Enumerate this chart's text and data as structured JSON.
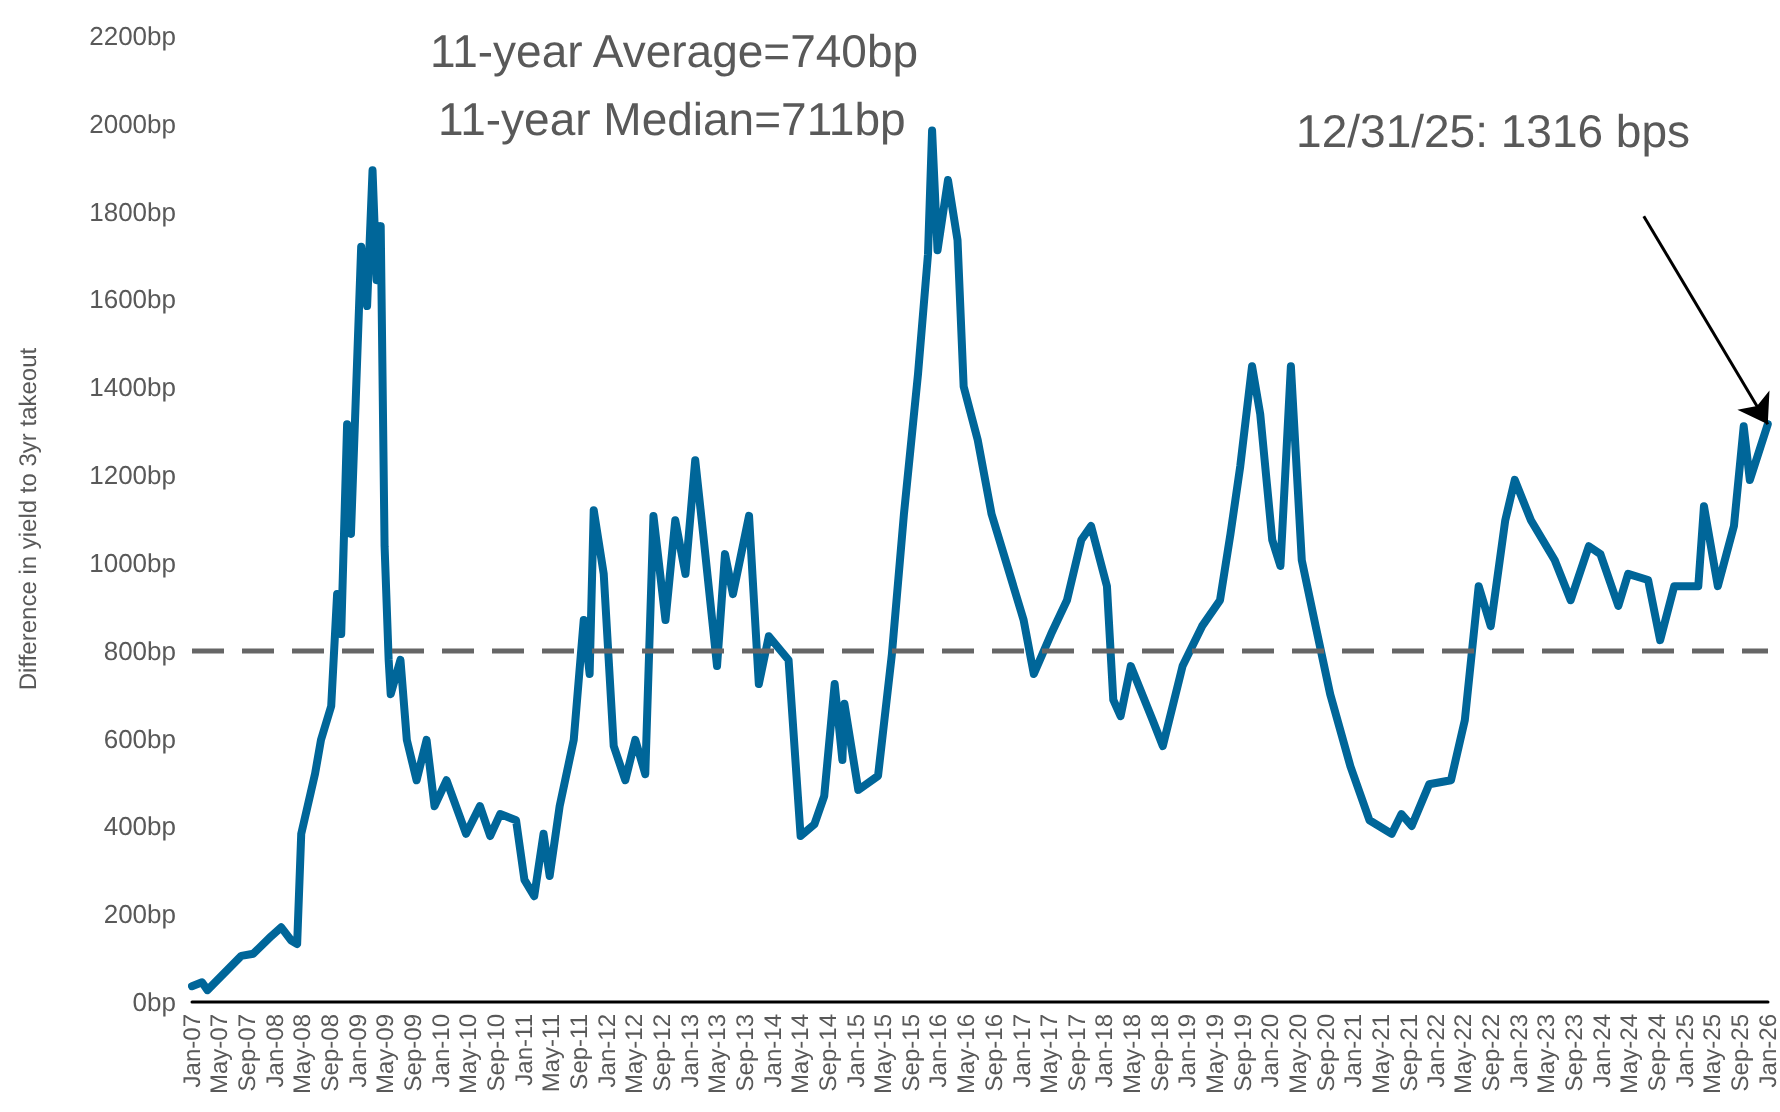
{
  "chart_data": {
    "type": "line",
    "ylabel": "Difference in yield to 3yr takeout",
    "annotations": [
      "11-year Average=740bp",
      "11-year Median=711bp",
      {
        "text": "12/31/25: 1316 bps",
        "x": "2025-12-31",
        "y": 1316
      }
    ],
    "x": [
      "2007-01-01",
      "2007-02-14",
      "2007-03-10",
      "2007-08-06",
      "2007-09-28",
      "2007-12-16",
      "2008-01-29",
      "2008-03-13",
      "2008-04-08",
      "2008-04-26",
      "2008-06-26",
      "2008-07-22",
      "2008-09-05",
      "2008-10-01",
      "2008-10-19",
      "2008-11-14",
      "2008-12-01",
      "2009-01-15",
      "2009-02-10",
      "2009-03-06",
      "2009-03-24",
      "2009-04-11",
      "2009-04-28",
      "2009-05-16",
      "2009-05-25",
      "2009-07-07",
      "2009-08-04",
      "2009-09-16",
      "2009-10-30",
      "2009-12-04",
      "2010-01-26",
      "2010-04-22",
      "2010-06-22",
      "2010-08-06",
      "2010-09-19",
      "2010-11-28",
      "2011-01-04",
      "2011-02-16",
      "2011-03-29",
      "2011-04-25",
      "2011-06-08",
      "2011-08-09",
      "2011-09-22",
      "2011-10-18",
      "2011-11-05",
      "2011-12-19",
      "2012-02-01",
      "2012-03-23",
      "2012-05-06",
      "2012-06-19",
      "2012-07-25",
      "2012-09-16",
      "2012-10-29",
      "2012-12-13",
      "2013-01-25",
      "2013-03-01",
      "2013-05-01",
      "2013-06-05",
      "2013-07-10",
      "2013-09-19",
      "2013-11-01",
      "2013-12-15",
      "2014-03-12",
      "2014-05-04",
      "2014-07-04",
      "2014-08-16",
      "2014-10-01",
      "2014-11-04",
      "2014-11-13",
      "2015-01-13",
      "2015-04-10",
      "2015-06-10",
      "2015-08-02",
      "2015-10-03",
      "2015-11-16",
      "2015-12-04",
      "2015-12-28",
      "2016-02-12",
      "2016-03-25",
      "2016-04-21",
      "2016-06-22",
      "2016-08-22",
      "2016-11-18",
      "2017-01-10",
      "2017-02-24",
      "2017-05-11",
      "2017-07-20",
      "2017-09-21",
      "2017-11-03",
      "2018-01-12",
      "2018-02-09",
      "2018-03-13",
      "2018-04-27",
      "2018-08-01",
      "2018-09-15",
      "2018-12-11",
      "2019-03-07",
      "2019-05-25",
      "2019-07-10",
      "2019-08-22",
      "2019-10-13",
      "2019-11-18",
      "2020-01-10",
      "2020-02-15",
      "2020-04-01",
      "2020-05-19",
      "2020-07-19",
      "2020-09-21",
      "2020-12-19",
      "2021-03-13",
      "2021-06-19",
      "2021-08-01",
      "2021-09-15",
      "2021-12-01",
      "2022-03-07",
      "2022-05-07",
      "2022-07-07",
      "2022-08-29",
      "2022-11-01",
      "2022-12-13",
      "2023-02-22",
      "2023-06-07",
      "2023-08-16",
      "2023-11-04",
      "2023-12-25",
      "2024-03-13",
      "2024-04-25",
      "2024-07-22",
      "2024-09-13",
      "2024-11-14",
      "2025-02-28",
      "2025-03-25",
      "2025-05-25",
      "2025-08-04",
      "2025-09-16",
      "2025-10-13",
      "2025-12-31"
    ],
    "series": [
      {
        "color": "#006699",
        "values": [
          36,
          45,
          27,
          105,
          110,
          150,
          170,
          140,
          132,
          383,
          520,
          597,
          674,
          929,
          838,
          1316,
          1066,
          1720,
          1585,
          1894,
          1644,
          1767,
          1038,
          779,
          701,
          779,
          597,
          505,
          597,
          446,
          505,
          383,
          446,
          378,
          428,
          414,
          278,
          241,
          383,
          287,
          446,
          597,
          870,
          747,
          1120,
          975,
          583,
          505,
          597,
          519,
          1107,
          870,
          1097,
          975,
          1234,
          1066,
          765,
          1020,
          929,
          1107,
          724,
          833,
          779,
          378,
          405,
          469,
          724,
          551,
          679,
          483,
          515,
          792,
          1111,
          1430,
          1703,
          1985,
          1712,
          1872,
          1735,
          1402,
          1280,
          1111,
          961,
          870,
          747,
          838,
          915,
          1052,
          1084,
          947,
          688,
          651,
          765,
          642,
          583,
          765,
          856,
          915,
          1066,
          1220,
          1448,
          1339,
          1052,
          993,
          1448,
          1006,
          856,
          701,
          537,
          414,
          383,
          428,
          401,
          496,
          505,
          642,
          947,
          856,
          1097,
          1189,
          1097,
          1006,
          915,
          1038,
          1020,
          902,
          975,
          961,
          824,
          947,
          947,
          1129,
          947,
          1084,
          1311,
          1189,
          1316
        ]
      }
    ],
    "ref_lines": [
      {
        "axis": "y",
        "value": 800,
        "color": "#666666",
        "line_style": "dashed"
      }
    ],
    "xlim": [
      "2007-01-01",
      "2026-01-01"
    ],
    "xticks": [
      {
        "value": "2007-01",
        "label": "Jan-07"
      },
      {
        "value": "2007-05",
        "label": "May-07"
      },
      {
        "value": "2007-09",
        "label": "Sep-07"
      },
      {
        "value": "2008-01",
        "label": "Jan-08"
      },
      {
        "value": "2008-05",
        "label": "May-08"
      },
      {
        "value": "2008-09",
        "label": "Sep-08"
      },
      {
        "value": "2009-01",
        "label": "Jan-09"
      },
      {
        "value": "2009-05",
        "label": "May-09"
      },
      {
        "value": "2009-09",
        "label": "Sep-09"
      },
      {
        "value": "2010-01",
        "label": "Jan-10"
      },
      {
        "value": "2010-05",
        "label": "May-10"
      },
      {
        "value": "2010-09",
        "label": "Sep-10"
      },
      {
        "value": "2011-01",
        "label": "Jan-11"
      },
      {
        "value": "2011-05",
        "label": "May-11"
      },
      {
        "value": "2011-09",
        "label": "Sep-11"
      },
      {
        "value": "2012-01",
        "label": "Jan-12"
      },
      {
        "value": "2012-05",
        "label": "May-12"
      },
      {
        "value": "2012-09",
        "label": "Sep-12"
      },
      {
        "value": "2013-01",
        "label": "Jan-13"
      },
      {
        "value": "2013-05",
        "label": "May-13"
      },
      {
        "value": "2013-09",
        "label": "Sep-13"
      },
      {
        "value": "2014-01",
        "label": "Jan-14"
      },
      {
        "value": "2014-05",
        "label": "May-14"
      },
      {
        "value": "2014-09",
        "label": "Sep-14"
      },
      {
        "value": "2015-01",
        "label": "Jan-15"
      },
      {
        "value": "2015-05",
        "label": "May-15"
      },
      {
        "value": "2015-09",
        "label": "Sep-15"
      },
      {
        "value": "2016-01",
        "label": "Jan-16"
      },
      {
        "value": "2016-05",
        "label": "May-16"
      },
      {
        "value": "2016-09",
        "label": "Sep-16"
      },
      {
        "value": "2017-01",
        "label": "Jan-17"
      },
      {
        "value": "2017-05",
        "label": "May-17"
      },
      {
        "value": "2017-09",
        "label": "Sep-17"
      },
      {
        "value": "2018-01",
        "label": "Jan-18"
      },
      {
        "value": "2018-05",
        "label": "May-18"
      },
      {
        "value": "2018-09",
        "label": "Sep-18"
      },
      {
        "value": "2019-01",
        "label": "Jan-19"
      },
      {
        "value": "2019-05",
        "label": "May-19"
      },
      {
        "value": "2019-09",
        "label": "Sep-19"
      },
      {
        "value": "2020-01",
        "label": "Jan-20"
      },
      {
        "value": "2020-05",
        "label": "May-20"
      },
      {
        "value": "2020-09",
        "label": "Sep-20"
      },
      {
        "value": "2021-01",
        "label": "Jan-21"
      },
      {
        "value": "2021-05",
        "label": "May-21"
      },
      {
        "value": "2021-09",
        "label": "Sep-21"
      },
      {
        "value": "2022-01",
        "label": "Jan-22"
      },
      {
        "value": "2022-05",
        "label": "May-22"
      },
      {
        "value": "2022-09",
        "label": "Sep-22"
      },
      {
        "value": "2023-01",
        "label": "Jan-23"
      },
      {
        "value": "2023-05",
        "label": "May-23"
      },
      {
        "value": "2023-09",
        "label": "Sep-23"
      },
      {
        "value": "2024-01",
        "label": "Jan-24"
      },
      {
        "value": "2024-05",
        "label": "May-24"
      },
      {
        "value": "2024-09",
        "label": "Sep-24"
      },
      {
        "value": "2025-01",
        "label": "Jan-25"
      },
      {
        "value": "2025-05",
        "label": "May-25"
      },
      {
        "value": "2025-09",
        "label": "Sep-25"
      },
      {
        "value": "2026-01",
        "label": "Jan-26"
      }
    ],
    "ylim": [
      0,
      2200
    ],
    "yticks": [
      {
        "value": 0,
        "label": "0bp"
      },
      {
        "value": 200,
        "label": "200bp"
      },
      {
        "value": 400,
        "label": "400bp"
      },
      {
        "value": 600,
        "label": "600bp"
      },
      {
        "value": 800,
        "label": "800bp"
      },
      {
        "value": 1000,
        "label": "1000bp"
      },
      {
        "value": 1200,
        "label": "1200bp"
      },
      {
        "value": 1400,
        "label": "1400bp"
      },
      {
        "value": 1600,
        "label": "1600bp"
      },
      {
        "value": 1800,
        "label": "1800bp"
      },
      {
        "value": 2000,
        "label": "2000bp"
      },
      {
        "value": 2200,
        "label": "2200bp"
      }
    ],
    "grid": false,
    "marker": "none",
    "line_style": "solid"
  }
}
